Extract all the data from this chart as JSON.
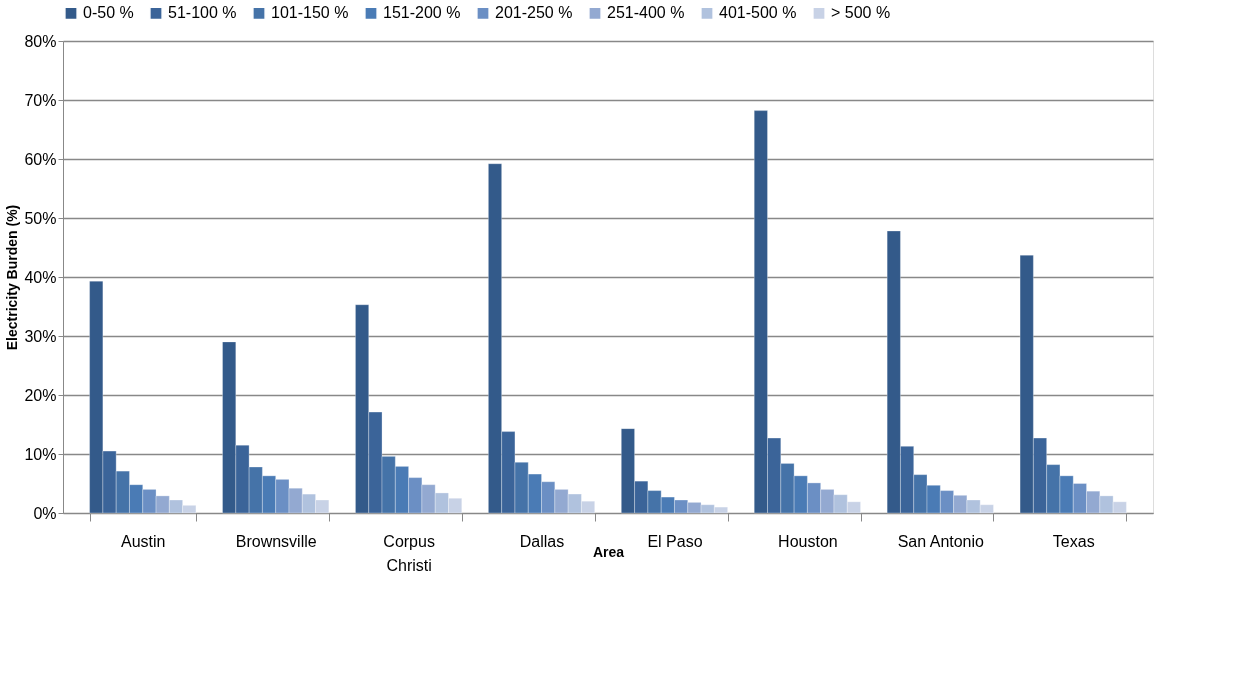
{
  "chart_data": {
    "type": "bar",
    "xlabel": "Area",
    "ylabel": "Electricity Burden (%)",
    "categories": [
      "Austin",
      "Brownsville",
      "Corpus Christi",
      "Dallas",
      "El Paso",
      "Houston",
      "San Antonio",
      "Texas"
    ],
    "series": [
      {
        "name": "0-50 %",
        "color": "#335a8a",
        "values": [
          39.3,
          29.0,
          35.3,
          59.2,
          14.3,
          68.2,
          47.8,
          43.7
        ]
      },
      {
        "name": "51-100 %",
        "color": "#3b6499",
        "values": [
          10.5,
          11.5,
          17.1,
          13.8,
          5.4,
          12.7,
          11.3,
          12.7
        ]
      },
      {
        "name": "101-150 %",
        "color": "#4573a8",
        "values": [
          7.1,
          7.8,
          9.6,
          8.6,
          3.8,
          8.4,
          6.5,
          8.2
        ]
      },
      {
        "name": "151-200 %",
        "color": "#4a7bb5",
        "values": [
          4.8,
          6.3,
          7.9,
          6.6,
          2.7,
          6.3,
          4.7,
          6.3
        ]
      },
      {
        "name": "201-250 %",
        "color": "#6b8fc4",
        "values": [
          4.0,
          5.7,
          6.0,
          5.3,
          2.2,
          5.1,
          3.8,
          5.0
        ]
      },
      {
        "name": "251-400 %",
        "color": "#93a9d1",
        "values": [
          2.9,
          4.2,
          4.8,
          4.0,
          1.8,
          4.0,
          3.0,
          3.7
        ]
      },
      {
        "name": "401-500 %",
        "color": "#b0c2de",
        "values": [
          2.2,
          3.2,
          3.4,
          3.2,
          1.4,
          3.1,
          2.2,
          2.9
        ]
      },
      {
        "name": "> 500 %",
        "color": "#c8d2e6",
        "values": [
          1.3,
          2.2,
          2.5,
          2.0,
          1.0,
          1.9,
          1.4,
          1.9
        ]
      }
    ],
    "ylim": [
      0,
      80
    ],
    "yticks": [
      {
        "value": 0,
        "label": "0%"
      },
      {
        "value": 10,
        "label": "10%"
      },
      {
        "value": 20,
        "label": "20%"
      },
      {
        "value": 30,
        "label": "30%"
      },
      {
        "value": 40,
        "label": "40%"
      },
      {
        "value": 50,
        "label": "50%"
      },
      {
        "value": 60,
        "label": "60%"
      },
      {
        "value": 70,
        "label": "70%"
      },
      {
        "value": 80,
        "label": "80%"
      }
    ],
    "grid": "y",
    "legend": "top"
  }
}
